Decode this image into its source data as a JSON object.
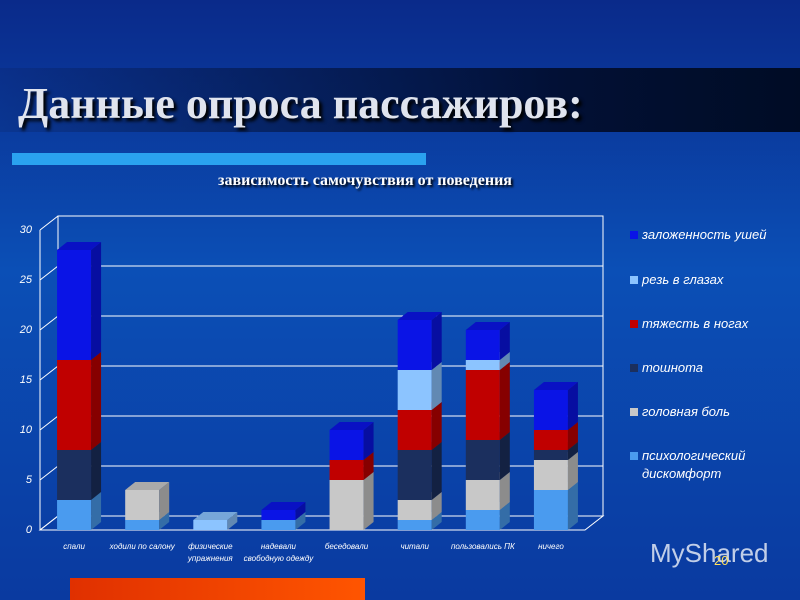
{
  "slide_title": "Данные опроса пассажиров:",
  "page_number": "20",
  "watermark": "MyShared",
  "chart_data": {
    "type": "stacked-bar-3d",
    "title": "зависимость самочувствия от поведения",
    "categories": [
      "спали",
      "ходили по салону",
      "физические упражнения",
      "надевали свободную одежду",
      "беседовали",
      "читали",
      "пользовались ПК",
      "ничего"
    ],
    "series": [
      {
        "name": "психологический дискомфорт",
        "color": "#4a9bef",
        "values": [
          3,
          1,
          0,
          1,
          0,
          1,
          2,
          4
        ]
      },
      {
        "name": "головная боль",
        "color": "#c8c8c8",
        "values": [
          0,
          3,
          0,
          0,
          5,
          2,
          3,
          3
        ]
      },
      {
        "name": "тошнота",
        "color": "#1b2f5e",
        "values": [
          5,
          0,
          0,
          0,
          0,
          5,
          4,
          1
        ]
      },
      {
        "name": "тяжесть в ногах",
        "color": "#c00000",
        "values": [
          9,
          0,
          0,
          0,
          2,
          4,
          7,
          2
        ]
      },
      {
        "name": "резь в глазах",
        "color": "#8cc4ff",
        "values": [
          0,
          0,
          1,
          0,
          0,
          4,
          1,
          0
        ]
      },
      {
        "name": "заложенность ушей",
        "color": "#0a14e6",
        "values": [
          11,
          0,
          0,
          1,
          3,
          5,
          3,
          4
        ]
      }
    ],
    "ylim": [
      0,
      30
    ],
    "yticks": [
      0,
      5,
      10,
      15,
      20,
      25,
      30
    ],
    "grid": true,
    "legend": "right"
  }
}
